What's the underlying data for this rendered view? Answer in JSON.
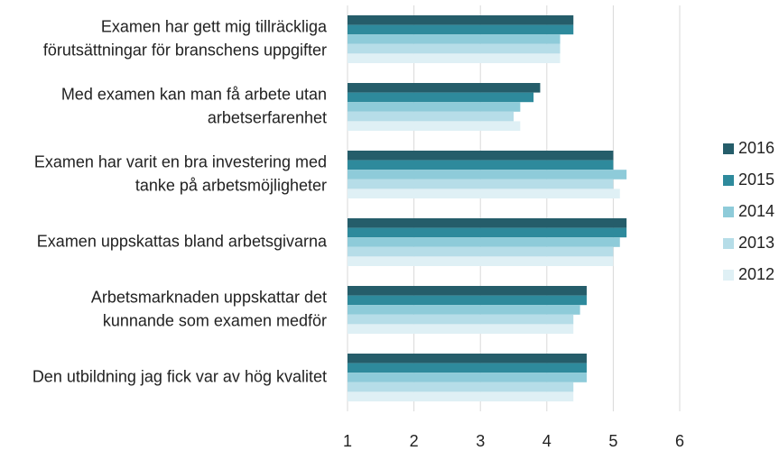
{
  "chart_data": {
    "type": "barh",
    "categories": [
      [
        "Examen har gett mig tillräckliga",
        "förutsättningar för branschens uppgifter"
      ],
      [
        "Med examen kan man få arbete utan",
        "arbetserfarenhet"
      ],
      [
        "Examen har varit en bra investering med",
        "tanke på arbetsmöjligheter"
      ],
      [
        "Examen uppskattas bland arbetsgivarna"
      ],
      [
        "Arbetsmarknaden uppskattar det",
        "kunnande som examen medför"
      ],
      [
        "Den utbildning jag fick var av hög kvalitet"
      ]
    ],
    "series": [
      {
        "name": "2016",
        "color": "#255d6a",
        "values": [
          4.4,
          3.9,
          5.0,
          5.2,
          4.6,
          4.6
        ]
      },
      {
        "name": "2015",
        "color": "#2e8a9c",
        "values": [
          4.4,
          3.8,
          5.0,
          5.2,
          4.6,
          4.6
        ]
      },
      {
        "name": "2014",
        "color": "#8ecbd9",
        "values": [
          4.2,
          3.6,
          5.2,
          5.1,
          4.5,
          4.6
        ]
      },
      {
        "name": "2013",
        "color": "#b6dde8",
        "values": [
          4.2,
          3.5,
          5.0,
          5.0,
          4.4,
          4.4
        ]
      },
      {
        "name": "2012",
        "color": "#dff0f5",
        "values": [
          4.2,
          3.6,
          5.1,
          5.0,
          4.4,
          4.4
        ]
      }
    ],
    "xlim": [
      1,
      6
    ],
    "xticks": [
      1,
      2,
      3,
      4,
      5,
      6
    ],
    "grid": true,
    "legend": "right"
  }
}
